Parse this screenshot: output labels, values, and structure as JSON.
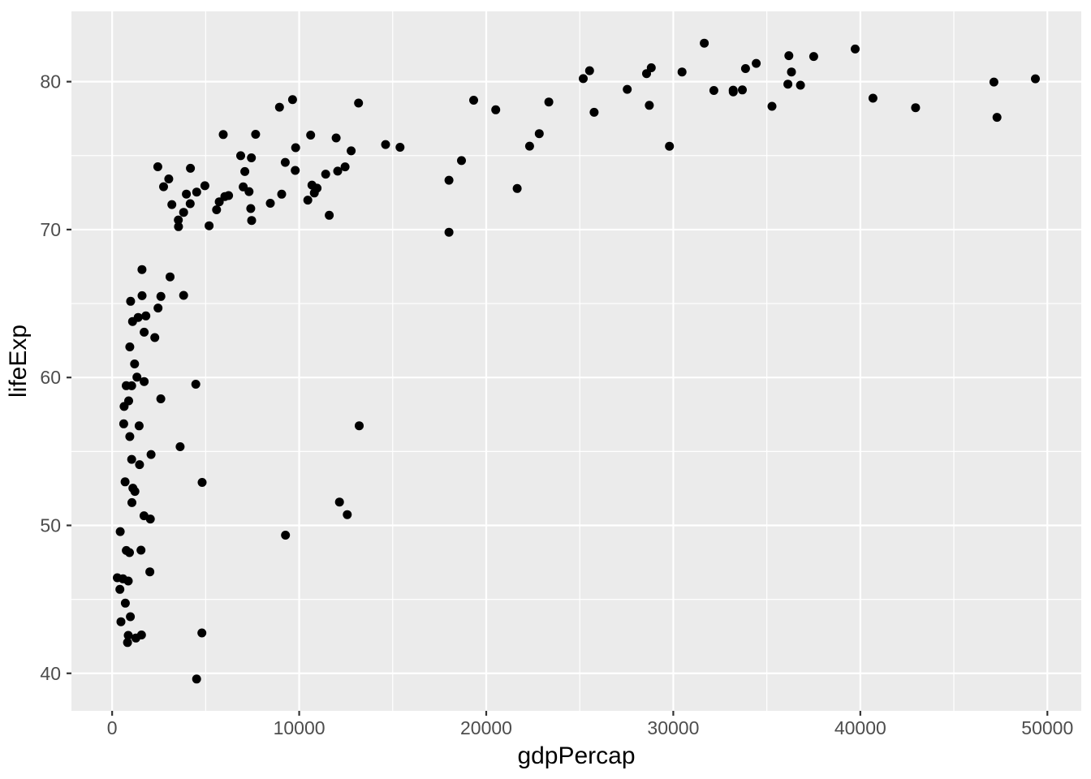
{
  "chart_data": {
    "type": "scatter",
    "title": "",
    "xlabel": "gdpPercap",
    "ylabel": "lifeExp",
    "x_ticks": [
      0,
      10000,
      20000,
      30000,
      40000,
      50000
    ],
    "x_tick_labels": [
      "0",
      "10000",
      "20000",
      "30000",
      "40000",
      "50000"
    ],
    "y_ticks": [
      40,
      50,
      60,
      70,
      80
    ],
    "y_tick_labels": [
      "40",
      "50",
      "60",
      "70",
      "80"
    ],
    "x_minor_ticks": [
      5000,
      15000,
      25000,
      35000,
      45000
    ],
    "y_minor_ticks": [
      45,
      55,
      65,
      75
    ],
    "xlim": [
      -2176.4,
      51811.2
    ],
    "ylim": [
      37.4635,
      84.7525
    ],
    "grid": true,
    "legend_position": "none",
    "marker": {
      "shape": "circle",
      "radius_px": 5.5
    },
    "series": [
      {
        "name": "countries",
        "points": [
          [
            974.6,
            43.828
          ],
          [
            5937.0,
            76.423
          ],
          [
            6223.4,
            72.301
          ],
          [
            4797.2,
            42.731
          ],
          [
            12779.4,
            75.32
          ],
          [
            34435.4,
            81.235
          ],
          [
            36126.5,
            79.829
          ],
          [
            29796.0,
            75.635
          ],
          [
            1391.3,
            64.062
          ],
          [
            33692.6,
            79.441
          ],
          [
            1441.3,
            56.728
          ],
          [
            3822.1,
            65.554
          ],
          [
            7446.3,
            74.852
          ],
          [
            12569.9,
            50.728
          ],
          [
            9065.8,
            72.39
          ],
          [
            10680.8,
            73.005
          ],
          [
            1217.0,
            52.295
          ],
          [
            430.1,
            49.58
          ],
          [
            1713.8,
            59.723
          ],
          [
            2042.1,
            50.43
          ],
          [
            36319.2,
            80.653
          ],
          [
            706.0,
            44.741
          ],
          [
            1704.1,
            50.651
          ],
          [
            13171.6,
            78.553
          ],
          [
            4959.1,
            72.961
          ],
          [
            7006.6,
            72.889
          ],
          [
            986.1,
            65.152
          ],
          [
            277.6,
            46.462
          ],
          [
            3632.6,
            55.322
          ],
          [
            9645.1,
            78.782
          ],
          [
            1544.8,
            48.328
          ],
          [
            14619.2,
            75.748
          ],
          [
            8948.1,
            78.273
          ],
          [
            22833.3,
            76.486
          ],
          [
            35278.4,
            78.332
          ],
          [
            2082.5,
            54.791
          ],
          [
            6025.4,
            72.235
          ],
          [
            6873.3,
            74.994
          ],
          [
            5581.2,
            71.338
          ],
          [
            5728.4,
            71.878
          ],
          [
            12154.1,
            51.579
          ],
          [
            641.4,
            58.04
          ],
          [
            690.8,
            52.947
          ],
          [
            33207.1,
            79.313
          ],
          [
            30470.0,
            80.657
          ],
          [
            13206.5,
            56.735
          ],
          [
            752.7,
            59.448
          ],
          [
            32170.4,
            79.406
          ],
          [
            1327.6,
            60.022
          ],
          [
            27538.4,
            79.483
          ],
          [
            5186.1,
            70.259
          ],
          [
            942.7,
            56.007
          ],
          [
            579.2,
            46.388
          ],
          [
            1201.6,
            60.916
          ],
          [
            3548.3,
            70.198
          ],
          [
            39725.0,
            82.208
          ],
          [
            18008.9,
            73.338
          ],
          [
            36180.8,
            81.757
          ],
          [
            2452.2,
            64.698
          ],
          [
            3540.7,
            70.65
          ],
          [
            11605.7,
            70.964
          ],
          [
            4471.1,
            59.545
          ],
          [
            40676.0,
            78.885
          ],
          [
            25523.3,
            80.745
          ],
          [
            28569.7,
            80.546
          ],
          [
            7320.9,
            72.567
          ],
          [
            31656.1,
            82.603
          ],
          [
            4519.5,
            72.535
          ],
          [
            1463.2,
            54.11
          ],
          [
            1593.1,
            67.297
          ],
          [
            23348.1,
            78.623
          ],
          [
            47307.0,
            77.588
          ],
          [
            10461.1,
            71.993
          ],
          [
            1569.3,
            42.592
          ],
          [
            414.5,
            45.678
          ],
          [
            12057.5,
            73.952
          ],
          [
            1044.8,
            59.443
          ],
          [
            759.3,
            48.303
          ],
          [
            12451.7,
            74.241
          ],
          [
            1042.6,
            54.467
          ],
          [
            1803.2,
            64.164
          ],
          [
            10957.0,
            72.801
          ],
          [
            11977.6,
            76.195
          ],
          [
            3095.8,
            66.803
          ],
          [
            9253.9,
            74.543
          ],
          [
            3820.2,
            71.164
          ],
          [
            823.7,
            42.082
          ],
          [
            944.0,
            62.069
          ],
          [
            4811.1,
            52.906
          ],
          [
            1091.4,
            63.785
          ],
          [
            36797.9,
            79.762
          ],
          [
            25185.0,
            80.204
          ],
          [
            2749.3,
            72.899
          ],
          [
            619.7,
            56.867
          ],
          [
            2014.0,
            46.859
          ],
          [
            49357.2,
            80.196
          ],
          [
            22316.2,
            75.64
          ],
          [
            2606.0,
            65.483
          ],
          [
            9809.2,
            75.537
          ],
          [
            4172.8,
            71.752
          ],
          [
            7408.9,
            71.421
          ],
          [
            3190.5,
            71.688
          ],
          [
            15389.9,
            75.563
          ],
          [
            20509.6,
            78.098
          ],
          [
            19328.7,
            78.746
          ],
          [
            7670.1,
            76.442
          ],
          [
            10808.5,
            72.476
          ],
          [
            863.1,
            46.242
          ],
          [
            1598.4,
            65.528
          ],
          [
            21654.8,
            72.777
          ],
          [
            1712.5,
            63.062
          ],
          [
            9786.5,
            74.002
          ],
          [
            862.5,
            42.568
          ],
          [
            47143.2,
            79.972
          ],
          [
            18678.3,
            74.663
          ],
          [
            25768.3,
            77.926
          ],
          [
            926.1,
            48.159
          ],
          [
            9269.7,
            49.339
          ],
          [
            28821.1,
            80.941
          ],
          [
            3970.1,
            72.396
          ],
          [
            2602.4,
            58.556
          ],
          [
            4513.5,
            39.613
          ],
          [
            33859.7,
            80.884
          ],
          [
            37506.4,
            81.701
          ],
          [
            4184.5,
            74.143
          ],
          [
            28718.3,
            78.4
          ],
          [
            1107.5,
            52.517
          ],
          [
            7458.4,
            70.616
          ],
          [
            883.0,
            58.42
          ],
          [
            18008.5,
            69.819
          ],
          [
            7092.9,
            73.923
          ],
          [
            8458.3,
            71.777
          ],
          [
            1056.4,
            51.542
          ],
          [
            33203.3,
            79.425
          ],
          [
            42951.7,
            78.242
          ],
          [
            10611.5,
            76.384
          ],
          [
            11415.8,
            73.747
          ],
          [
            2441.6,
            74.249
          ],
          [
            3025.3,
            73.422
          ],
          [
            2280.8,
            62.698
          ],
          [
            1271.2,
            42.384
          ],
          [
            469.7,
            43.487
          ]
        ]
      }
    ]
  },
  "colors": {
    "background": "#FFFFFF",
    "panel_bg": "#EBEBEB",
    "grid_major": "#FFFFFF",
    "grid_minor": "#FFFFFF",
    "point": "#000000",
    "tick_mark": "#333333",
    "tick_label": "#4D4D4D",
    "axis_title": "#000000"
  }
}
